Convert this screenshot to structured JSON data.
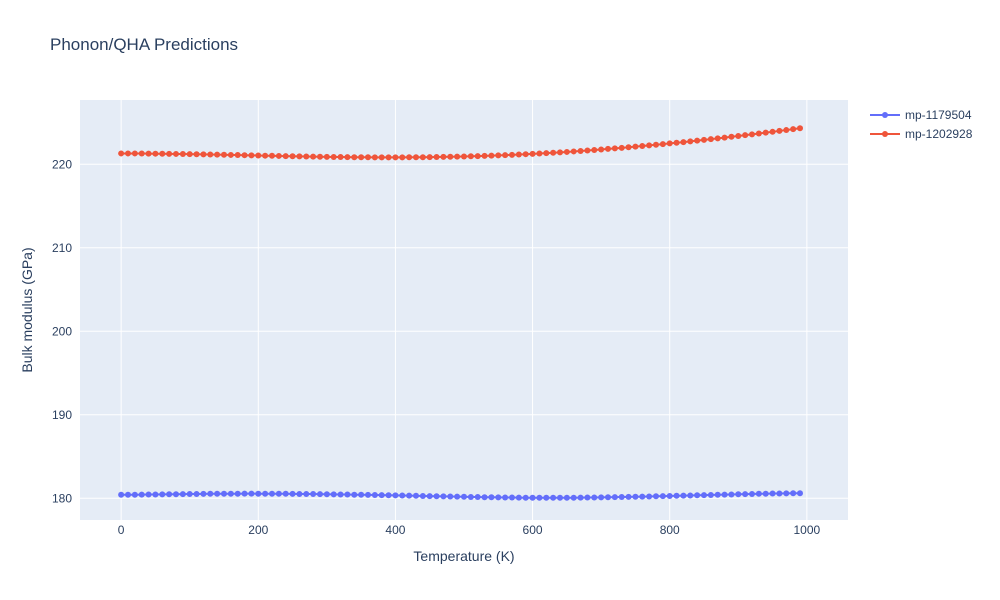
{
  "chart_data": {
    "type": "line",
    "title": "Phonon/QHA Predictions",
    "xlabel": "Temperature (K)",
    "ylabel": "Bulk modulus (GPa)",
    "xlim": [
      -60,
      1060
    ],
    "ylim": [
      177.4,
      227.7
    ],
    "x_ticks": [
      0,
      200,
      400,
      600,
      800,
      1000
    ],
    "y_ticks": [
      180,
      190,
      200,
      210,
      220
    ],
    "grid": true,
    "legend_position": "top-right",
    "x": [
      0,
      10,
      20,
      30,
      40,
      50,
      60,
      70,
      80,
      90,
      100,
      110,
      120,
      130,
      140,
      150,
      160,
      170,
      180,
      190,
      200,
      210,
      220,
      230,
      240,
      250,
      260,
      270,
      280,
      290,
      300,
      310,
      320,
      330,
      340,
      350,
      360,
      370,
      380,
      390,
      400,
      410,
      420,
      430,
      440,
      450,
      460,
      470,
      480,
      490,
      500,
      510,
      520,
      530,
      540,
      550,
      560,
      570,
      580,
      590,
      600,
      610,
      620,
      630,
      640,
      650,
      660,
      670,
      680,
      690,
      700,
      710,
      720,
      730,
      740,
      750,
      760,
      770,
      780,
      790,
      800,
      810,
      820,
      830,
      840,
      850,
      860,
      870,
      880,
      890,
      900,
      910,
      920,
      930,
      940,
      950,
      960,
      970,
      980,
      990
    ],
    "series": [
      {
        "name": "mp-1179504",
        "color": "#636efa",
        "values": [
          180.43,
          180.43,
          180.43,
          180.44,
          180.45,
          180.46,
          180.47,
          180.48,
          180.49,
          180.5,
          180.51,
          180.52,
          180.53,
          180.54,
          180.54,
          180.55,
          180.55,
          180.55,
          180.56,
          180.56,
          180.55,
          180.55,
          180.55,
          180.54,
          180.54,
          180.53,
          180.52,
          180.51,
          180.51,
          180.5,
          180.49,
          180.47,
          180.46,
          180.45,
          180.43,
          180.42,
          180.41,
          180.39,
          180.38,
          180.36,
          180.35,
          180.33,
          180.32,
          180.3,
          180.28,
          180.26,
          180.25,
          180.23,
          180.21,
          180.2,
          180.18,
          180.16,
          180.15,
          180.13,
          180.12,
          180.11,
          180.1,
          180.09,
          180.08,
          180.07,
          180.07,
          180.06,
          180.06,
          180.06,
          180.06,
          180.07,
          180.07,
          180.08,
          180.09,
          180.1,
          180.11,
          180.12,
          180.14,
          180.15,
          180.17,
          180.19,
          180.2,
          180.22,
          180.24,
          180.26,
          180.28,
          180.3,
          180.32,
          180.34,
          180.36,
          180.38,
          180.4,
          180.42,
          180.44,
          180.46,
          180.48,
          180.5,
          180.52,
          180.54,
          180.55,
          180.57,
          180.58,
          180.59,
          180.6,
          180.61
        ]
      },
      {
        "name": "mp-1202928",
        "color": "#ef553b",
        "values": [
          221.3,
          221.3,
          221.3,
          221.29,
          221.28,
          221.27,
          221.26,
          221.25,
          221.24,
          221.23,
          221.22,
          221.2,
          221.19,
          221.17,
          221.16,
          221.14,
          221.12,
          221.11,
          221.09,
          221.07,
          221.05,
          221.03,
          221.02,
          221.0,
          220.98,
          220.96,
          220.95,
          220.93,
          220.92,
          220.9,
          220.89,
          220.88,
          220.87,
          220.86,
          220.85,
          220.84,
          220.84,
          220.83,
          220.83,
          220.83,
          220.83,
          220.83,
          220.84,
          220.84,
          220.85,
          220.86,
          220.87,
          220.89,
          220.9,
          220.92,
          220.94,
          220.96,
          220.98,
          221.01,
          221.04,
          221.07,
          221.1,
          221.13,
          221.17,
          221.21,
          221.25,
          221.29,
          221.34,
          221.38,
          221.43,
          221.48,
          221.54,
          221.59,
          221.65,
          221.71,
          221.77,
          221.84,
          221.9,
          221.97,
          222.04,
          222.11,
          222.19,
          222.26,
          222.34,
          222.42,
          222.5,
          222.58,
          222.66,
          222.75,
          222.84,
          222.93,
          223.02,
          223.11,
          223.2,
          223.3,
          223.39,
          223.49,
          223.59,
          223.69,
          223.79,
          223.89,
          224.0,
          224.1,
          224.21,
          224.32
        ]
      }
    ]
  }
}
